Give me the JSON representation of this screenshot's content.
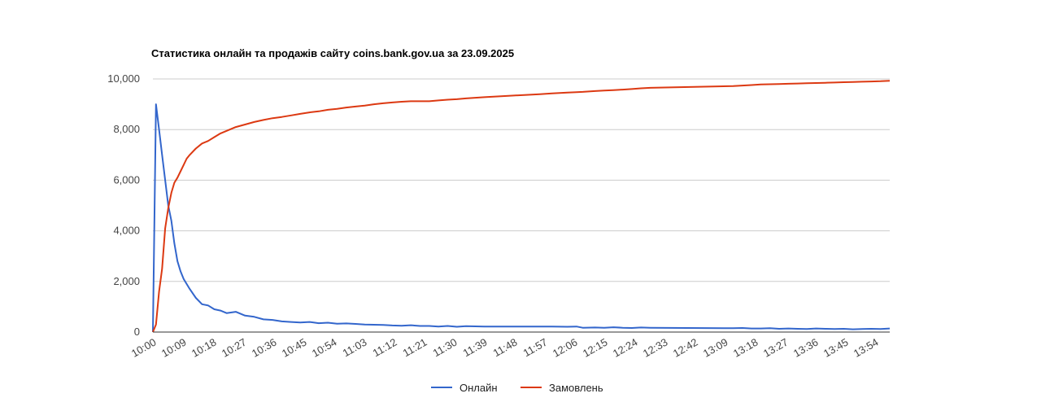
{
  "chart_data": {
    "type": "line",
    "title": "Статистика онлайн та продажів сайту coins.bank.gov.ua за 23.09.2025",
    "xlabel": "",
    "ylabel": "",
    "ylim": [
      0,
      10000
    ],
    "y_ticks": [
      "0",
      "2,000",
      "4,000",
      "6,000",
      "8,000",
      "10,000"
    ],
    "x_ticks": [
      "10:00",
      "10:09",
      "10:18",
      "10:27",
      "10:36",
      "10:45",
      "10:54",
      "11:03",
      "11:12",
      "11:21",
      "11:30",
      "11:39",
      "11:48",
      "11:57",
      "12:06",
      "12:15",
      "12:24",
      "12:33",
      "12:42",
      "13:09",
      "13:18",
      "13:27",
      "13:36",
      "13:45",
      "13:54"
    ],
    "grid": true,
    "legend_position": "bottom",
    "series": [
      {
        "name": "Онлайн",
        "color": "#3366cc",
        "x": [
          "10:00",
          "10:01",
          "10:02",
          "10:03",
          "10:04",
          "10:05",
          "10:06",
          "10:07",
          "10:08",
          "10:09",
          "10:10",
          "10:11",
          "10:12",
          "10:14",
          "10:16",
          "10:18",
          "10:20",
          "10:22",
          "10:24",
          "10:27",
          "10:30",
          "10:33",
          "10:36",
          "10:39",
          "10:42",
          "10:45",
          "10:48",
          "10:51",
          "10:54",
          "10:57",
          "11:00",
          "11:03",
          "11:06",
          "11:09",
          "11:12",
          "11:15",
          "11:18",
          "11:21",
          "11:24",
          "11:27",
          "11:30",
          "11:33",
          "11:36",
          "11:39",
          "11:42",
          "11:48",
          "11:57",
          "12:06",
          "12:10",
          "12:15",
          "12:18",
          "12:20",
          "12:24",
          "12:27",
          "12:30",
          "12:33",
          "12:36",
          "12:39",
          "12:42",
          "13:09",
          "13:12",
          "13:15",
          "13:18",
          "13:21",
          "13:24",
          "13:27",
          "13:30",
          "13:33",
          "13:36",
          "13:39",
          "13:42",
          "13:45",
          "13:48",
          "13:51",
          "13:54",
          "13:57",
          "14:00"
        ],
        "y": [
          0,
          9000,
          8000,
          7000,
          6000,
          5000,
          4400,
          3500,
          2800,
          2400,
          2100,
          1900,
          1700,
          1350,
          1100,
          1050,
          900,
          850,
          750,
          800,
          650,
          600,
          500,
          480,
          420,
          400,
          380,
          400,
          350,
          370,
          330,
          340,
          320,
          300,
          290,
          280,
          260,
          250,
          270,
          240,
          240,
          220,
          240,
          210,
          230,
          220,
          220,
          220,
          220,
          210,
          220,
          170,
          180,
          170,
          190,
          170,
          160,
          180,
          170,
          150,
          160,
          140,
          140,
          150,
          130,
          140,
          130,
          120,
          140,
          130,
          120,
          130,
          110,
          120,
          130,
          120,
          140
        ]
      },
      {
        "name": "Замовлень",
        "color": "#dc3912",
        "x": [
          "10:00",
          "10:01",
          "10:02",
          "10:03",
          "10:04",
          "10:05",
          "10:06",
          "10:07",
          "10:08",
          "10:09",
          "10:10",
          "10:11",
          "10:12",
          "10:14",
          "10:16",
          "10:18",
          "10:20",
          "10:22",
          "10:24",
          "10:27",
          "10:30",
          "10:33",
          "10:36",
          "10:39",
          "10:42",
          "10:45",
          "10:48",
          "10:51",
          "10:54",
          "10:57",
          "11:00",
          "11:03",
          "11:06",
          "11:09",
          "11:12",
          "11:15",
          "11:18",
          "11:21",
          "11:24",
          "11:27",
          "11:30",
          "11:33",
          "11:36",
          "11:39",
          "11:42",
          "11:48",
          "11:57",
          "12:06",
          "12:10",
          "12:15",
          "12:18",
          "12:20",
          "12:24",
          "12:27",
          "12:30",
          "12:33",
          "12:36",
          "12:39",
          "12:42",
          "13:09",
          "13:12",
          "13:15",
          "13:18",
          "13:21",
          "13:24",
          "13:27",
          "13:30",
          "13:33",
          "13:36",
          "13:39",
          "13:42",
          "13:45",
          "13:48",
          "13:51",
          "13:54",
          "13:57",
          "14:00"
        ],
        "y": [
          0,
          300,
          1600,
          2500,
          4100,
          4900,
          5500,
          5900,
          6100,
          6350,
          6600,
          6850,
          7000,
          7250,
          7450,
          7550,
          7700,
          7850,
          7950,
          8100,
          8200,
          8300,
          8380,
          8450,
          8500,
          8560,
          8620,
          8680,
          8720,
          8780,
          8820,
          8870,
          8910,
          8950,
          9000,
          9040,
          9070,
          9100,
          9120,
          9120,
          9120,
          9150,
          9180,
          9200,
          9230,
          9280,
          9340,
          9400,
          9430,
          9460,
          9480,
          9490,
          9520,
          9540,
          9560,
          9580,
          9600,
          9630,
          9650,
          9720,
          9740,
          9760,
          9780,
          9790,
          9800,
          9810,
          9820,
          9830,
          9840,
          9850,
          9860,
          9870,
          9880,
          9890,
          9900,
          9910,
          9930
        ]
      }
    ]
  }
}
